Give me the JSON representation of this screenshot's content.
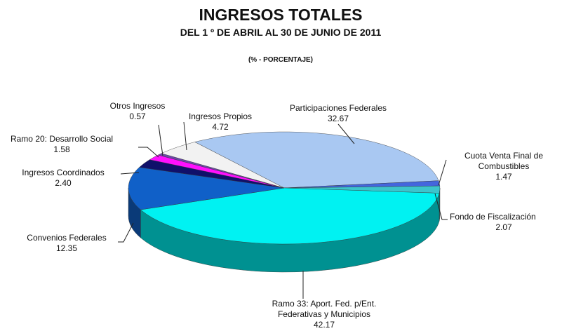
{
  "chart_data": {
    "type": "pie3d",
    "title": "INGRESOS TOTALES",
    "subtitle": "DEL 1 º DE ABRIL AL 30 DE JUNIO DE 2011",
    "unit_label": "(% - PORCENTAJE)",
    "categories": [
      "Participaciones Federales",
      "Cuota Venta Final de\nCombustibles",
      "Fondo de Fiscalización",
      "Ramo 33: Aport. Fed. p/Ent.\nFederativas y Municipios",
      "Convenios Federales",
      "Ingresos Coordinados",
      "Ramo 20: Desarrollo Social",
      "Otros Ingresos",
      "Ingresos Propios"
    ],
    "values": [
      32.67,
      1.47,
      2.07,
      42.17,
      12.35,
      2.4,
      1.58,
      0.57,
      4.72
    ],
    "value_labels": [
      "32.67",
      "1.47",
      "2.07",
      "42.17",
      "12.35",
      "2.40",
      "1.58",
      "0.57",
      "4.72"
    ],
    "colors": [
      "#a9c8f2",
      "#4466dd",
      "#3cc4cc",
      "#00f2f2",
      "#1060c8",
      "#10106a",
      "#ff10ff",
      "#6a48a8",
      "#f2f2f2"
    ]
  }
}
